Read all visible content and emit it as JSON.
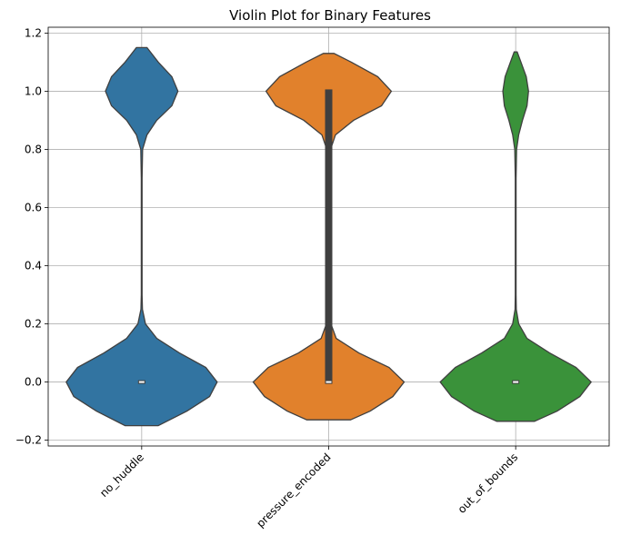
{
  "chart_data": {
    "type": "violin",
    "title": "Violin Plot for Binary Features",
    "xlabel": "",
    "ylabel": "",
    "categories": [
      "no_huddle",
      "pressure_encoded",
      "out_of_bounds"
    ],
    "colors": [
      "#3274a1",
      "#e1812c",
      "#3a923a"
    ],
    "ylim": [
      -0.22,
      1.22
    ],
    "yticks": [
      -0.2,
      0.0,
      0.2,
      0.4,
      0.6,
      0.8,
      1.0,
      1.2
    ],
    "ytick_labels": [
      "−0.2",
      "0.0",
      "0.2",
      "0.4",
      "0.6",
      "0.8",
      "1.0",
      "1.2"
    ],
    "grid": true,
    "series": [
      {
        "category": "no_huddle",
        "range": [
          -0.15,
          1.15
        ],
        "density": [
          [
            -0.15,
            0.22
          ],
          [
            -0.1,
            0.6
          ],
          [
            -0.05,
            0.9
          ],
          [
            0.0,
            1.0
          ],
          [
            0.05,
            0.85
          ],
          [
            0.1,
            0.5
          ],
          [
            0.15,
            0.2
          ],
          [
            0.2,
            0.05
          ],
          [
            0.25,
            0.01
          ],
          [
            0.3,
            0.005
          ],
          [
            0.7,
            0.005
          ],
          [
            0.8,
            0.012
          ],
          [
            0.85,
            0.07
          ],
          [
            0.9,
            0.2
          ],
          [
            0.95,
            0.4
          ],
          [
            1.0,
            0.48
          ],
          [
            1.05,
            0.4
          ],
          [
            1.1,
            0.22
          ],
          [
            1.15,
            0.07
          ]
        ],
        "median": 0.0,
        "q1": 0.0,
        "q3": 0.0
      },
      {
        "category": "pressure_encoded",
        "range": [
          -0.13,
          1.13
        ],
        "density": [
          [
            -0.13,
            0.29
          ],
          [
            -0.1,
            0.55
          ],
          [
            -0.05,
            0.85
          ],
          [
            0.0,
            1.0
          ],
          [
            0.05,
            0.8
          ],
          [
            0.1,
            0.4
          ],
          [
            0.15,
            0.1
          ],
          [
            0.2,
            0.03
          ],
          [
            0.25,
            0.015
          ],
          [
            0.75,
            0.015
          ],
          [
            0.8,
            0.025
          ],
          [
            0.85,
            0.09
          ],
          [
            0.9,
            0.33
          ],
          [
            0.95,
            0.7
          ],
          [
            1.0,
            0.83
          ],
          [
            1.05,
            0.65
          ],
          [
            1.1,
            0.3
          ],
          [
            1.13,
            0.07
          ]
        ],
        "median": 0.0,
        "q1": 0.0,
        "q3": 1.0
      },
      {
        "category": "out_of_bounds",
        "range": [
          -0.135,
          1.135
        ],
        "density": [
          [
            -0.135,
            0.25
          ],
          [
            -0.1,
            0.55
          ],
          [
            -0.05,
            0.85
          ],
          [
            0.0,
            1.0
          ],
          [
            0.05,
            0.8
          ],
          [
            0.1,
            0.45
          ],
          [
            0.15,
            0.15
          ],
          [
            0.2,
            0.04
          ],
          [
            0.25,
            0.008
          ],
          [
            0.3,
            0.005
          ],
          [
            0.7,
            0.005
          ],
          [
            0.8,
            0.012
          ],
          [
            0.85,
            0.04
          ],
          [
            0.9,
            0.09
          ],
          [
            0.95,
            0.15
          ],
          [
            1.0,
            0.17
          ],
          [
            1.05,
            0.14
          ],
          [
            1.1,
            0.07
          ],
          [
            1.135,
            0.02
          ]
        ],
        "median": 0.0,
        "q1": 0.0,
        "q3": 0.0
      }
    ]
  }
}
